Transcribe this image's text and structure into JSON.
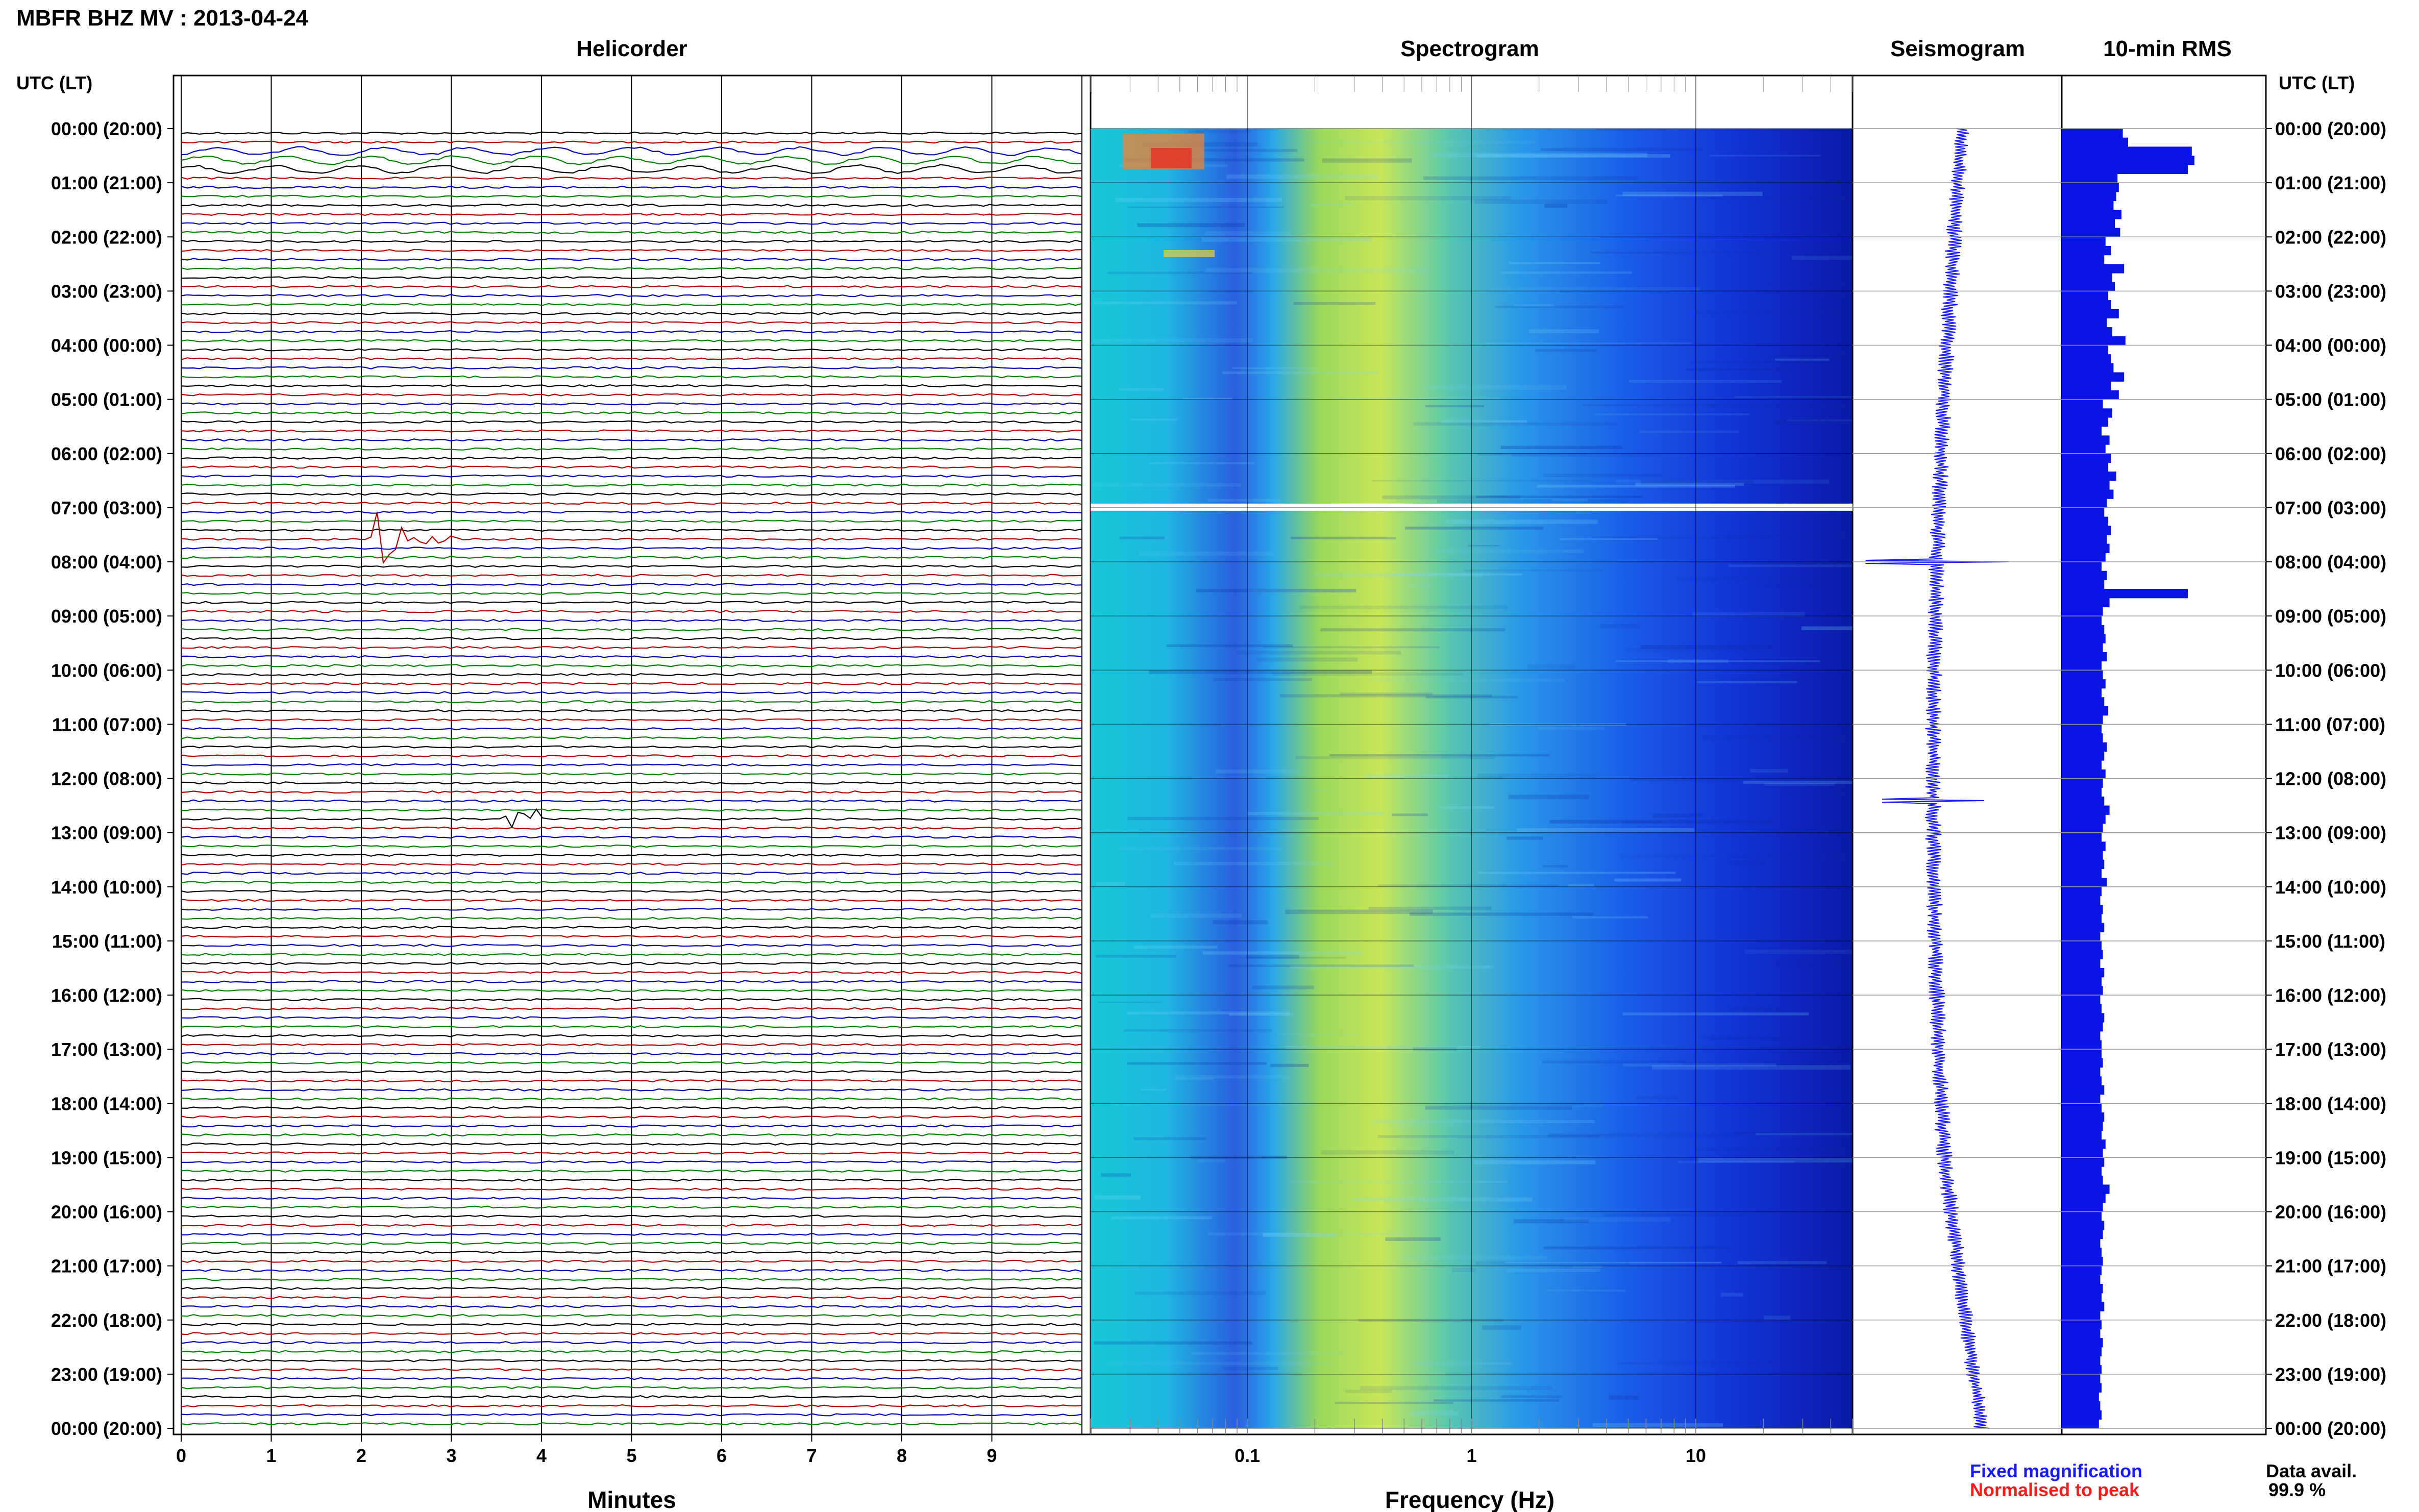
{
  "header": {
    "title": "MBFR BHZ MV : 2013-04-24"
  },
  "panels": {
    "helicorder": "Helicorder",
    "spectrogram": "Spectrogram",
    "seismogram": "Seismogram",
    "rms": "10-min RMS"
  },
  "time_axis_label": "UTC (LT)",
  "time_labels": [
    "00:00 (20:00)",
    "01:00 (21:00)",
    "02:00 (22:00)",
    "03:00 (23:00)",
    "04:00 (00:00)",
    "05:00 (01:00)",
    "06:00 (02:00)",
    "07:00 (03:00)",
    "08:00 (04:00)",
    "09:00 (05:00)",
    "10:00 (06:00)",
    "11:00 (07:00)",
    "12:00 (08:00)",
    "13:00 (09:00)",
    "14:00 (10:00)",
    "15:00 (11:00)",
    "16:00 (12:00)",
    "17:00 (13:00)",
    "18:00 (14:00)",
    "19:00 (15:00)",
    "20:00 (16:00)",
    "21:00 (17:00)",
    "22:00 (18:00)",
    "23:00 (19:00)",
    "00:00 (20:00)"
  ],
  "helicorder_axis": {
    "label": "Minutes",
    "ticks": [
      "0",
      "1",
      "2",
      "3",
      "4",
      "5",
      "6",
      "7",
      "8",
      "9"
    ]
  },
  "spectrogram_axis": {
    "label": "Frequency (Hz)",
    "ticks": [
      "0.1",
      "1",
      "10"
    ]
  },
  "legend": {
    "fixed": "Fixed magnification",
    "normalised": "Normalised to peak"
  },
  "data_availability": {
    "label": "Data avail.",
    "value": "99.9 %"
  },
  "colors": {
    "trace_cycle": [
      "#000000",
      "#b00000",
      "#0000b0",
      "#008000"
    ],
    "seismogram": "#1a1aff",
    "rms_bar": "#0a14e6"
  },
  "chart_data": [
    {
      "type": "line",
      "title": "Helicorder",
      "xlabel": "Minutes",
      "xlim": [
        0,
        10
      ],
      "rows": 144,
      "row_minutes": 10,
      "events": [
        {
          "time_utc": "00:10-00:30",
          "note": "long-period green/blue oscillation"
        },
        {
          "time_utc": "07:30",
          "note": "largest transient"
        },
        {
          "time_utc": "12:40",
          "note": "transient"
        }
      ]
    },
    {
      "type": "heatmap",
      "title": "Spectrogram",
      "xlabel": "Frequency (Hz)",
      "xscale": "log",
      "xlim": [
        0.02,
        50
      ],
      "colormap": "jet",
      "gap_utc": "07:00"
    },
    {
      "type": "bar",
      "title": "10-min RMS",
      "orientation": "horizontal",
      "xlim": [
        0,
        1
      ],
      "values": [
        0.46,
        0.5,
        0.98,
        1.0,
        0.95,
        0.42,
        0.43,
        0.41,
        0.39,
        0.45,
        0.4,
        0.44,
        0.33,
        0.37,
        0.32,
        0.47,
        0.38,
        0.4,
        0.35,
        0.37,
        0.43,
        0.34,
        0.38,
        0.48,
        0.35,
        0.37,
        0.39,
        0.47,
        0.37,
        0.43,
        0.31,
        0.38,
        0.35,
        0.3,
        0.36,
        0.33,
        0.37,
        0.35,
        0.41,
        0.36,
        0.39,
        0.34,
        0.32,
        0.35,
        0.37,
        0.34,
        0.36,
        0.33,
        0.3,
        0.34,
        0.32,
        0.95,
        0.36,
        0.31,
        0.3,
        0.32,
        0.33,
        0.31,
        0.34,
        0.3,
        0.31,
        0.33,
        0.3,
        0.32,
        0.35,
        0.31,
        0.3,
        0.31,
        0.34,
        0.32,
        0.3,
        0.33,
        0.31,
        0.3,
        0.32,
        0.36,
        0.33,
        0.31,
        0.3,
        0.33,
        0.31,
        0.32,
        0.3,
        0.34,
        0.3,
        0.29,
        0.31,
        0.3,
        0.32,
        0.29,
        0.3,
        0.31,
        0.29,
        0.32,
        0.3,
        0.31,
        0.29,
        0.3,
        0.32,
        0.31,
        0.29,
        0.3,
        0.3,
        0.31,
        0.29,
        0.3,
        0.32,
        0.29,
        0.3,
        0.32,
        0.31,
        0.3,
        0.33,
        0.31,
        0.32,
        0.3,
        0.31,
        0.36,
        0.33,
        0.31,
        0.3,
        0.32,
        0.31,
        0.29,
        0.3,
        0.31,
        0.3,
        0.29,
        0.31,
        0.3,
        0.32,
        0.29,
        0.3,
        0.29,
        0.31,
        0.3,
        0.29,
        0.3,
        0.29,
        0.3,
        0.28,
        0.29,
        0.3,
        0.28
      ]
    }
  ]
}
